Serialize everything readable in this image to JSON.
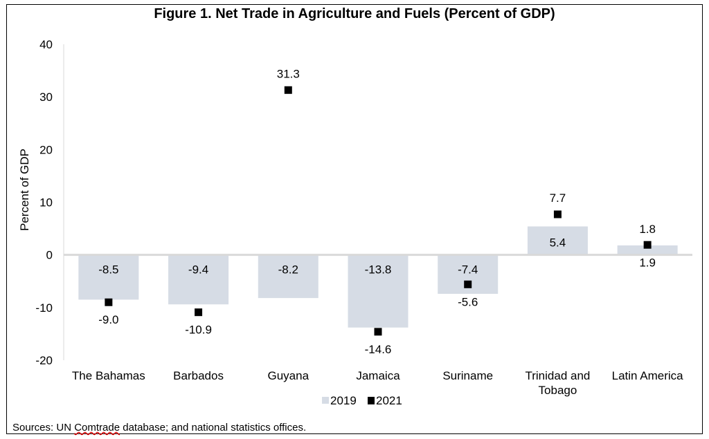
{
  "chart_data": {
    "type": "bar",
    "title": "Figure 1. Net Trade in Agriculture and Fuels (Percent of GDP)",
    "xlabel": "",
    "ylabel": "Percent of GDP",
    "ylim": [
      -20,
      40
    ],
    "yticks": [
      40,
      30,
      20,
      10,
      0,
      -10,
      -20
    ],
    "grid": false,
    "legend_position": "bottom-center",
    "categories": [
      "The Bahamas",
      "Barbados",
      "Guyana",
      "Jamaica",
      "Suriname",
      "Trinidad and Tobago",
      "Latin America"
    ],
    "category_lines": [
      [
        "The Bahamas"
      ],
      [
        "Barbados"
      ],
      [
        "Guyana"
      ],
      [
        "Jamaica"
      ],
      [
        "Suriname"
      ],
      [
        "Trinidad and",
        "Tobago"
      ],
      [
        "Latin America"
      ]
    ],
    "series": [
      {
        "name": "2019",
        "kind": "bar",
        "color": "#d6dce5",
        "values": [
          -8.5,
          -9.4,
          -8.2,
          -13.8,
          -7.4,
          5.4,
          1.8
        ],
        "labels": [
          "-8.5",
          "-9.4",
          "-8.2",
          "-13.8",
          "-7.4",
          "5.4",
          "1.8"
        ]
      },
      {
        "name": "2021",
        "kind": "marker",
        "color": "#000000",
        "values": [
          -9.0,
          -10.9,
          31.3,
          -14.6,
          -5.6,
          7.7,
          1.9
        ],
        "labels": [
          "-9.0",
          "-10.9",
          "31.3",
          "-14.6",
          "-5.6",
          "7.7",
          "1.9"
        ]
      }
    ]
  },
  "footer": {
    "source_prefix": "Sources: UN ",
    "source_flagged": "Comtrade",
    "source_suffix": " database; and national statistics offices."
  }
}
